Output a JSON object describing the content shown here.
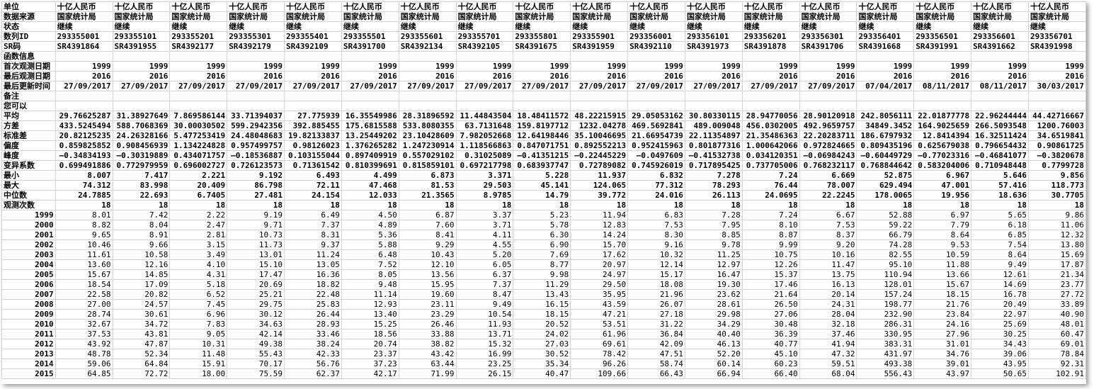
{
  "table": {
    "rows": [
      {
        "label": "单位",
        "cells": [
          "十亿人民币",
          "十亿人民币",
          "十亿人民币",
          "十亿人民币",
          "十亿人民币",
          "十亿人民币",
          "十亿人民币",
          "十亿人民币",
          "十亿人民币",
          "十亿人民币",
          "十亿人民币",
          "十亿人民币",
          "十亿人民币",
          "十亿人民币",
          "十亿人民币",
          "十亿人民币",
          "十亿人民币",
          "十亿人民币"
        ]
      },
      {
        "label": "数据来源",
        "cells": [
          "国家统计局",
          "国家统计局",
          "国家统计局",
          "国家统计局",
          "国家统计局",
          "国家统计局",
          "国家统计局",
          "国家统计局",
          "国家统计局",
          "国家统计局",
          "国家统计局",
          "国家统计局",
          "国家统计局",
          "国家统计局",
          "国家统计局",
          "国家统计局",
          "国家统计局",
          "国家统计局"
        ]
      },
      {
        "label": "状态",
        "cells": [
          "继续",
          "继续",
          "继续",
          "继续",
          "继续",
          "继续",
          "继续",
          "继续",
          "继续",
          "继续",
          "继续",
          "继续",
          "继续",
          "继续",
          "继续",
          "继续",
          "继续",
          "继续"
        ]
      },
      {
        "label": "数列ID",
        "cells": [
          "293355001",
          "293355101",
          "293355201",
          "293355301",
          "293355401",
          "293355501",
          "293355601",
          "293355701",
          "293355801",
          "293355901",
          "293356001",
          "293356101",
          "293356201",
          "293356301",
          "293356401",
          "293356501",
          "293356601",
          "293356701"
        ]
      },
      {
        "label": "SR码",
        "cells": [
          "SR4391864",
          "SR4391955",
          "SR4392177",
          "SR4392179",
          "SR4392109",
          "SR4391700",
          "SR4392134",
          "SR4392105",
          "SR4391675",
          "SR4391959",
          "SR4392110",
          "SR4391973",
          "SR4391878",
          "SR4391706",
          "SR4391668",
          "SR4391991",
          "SR4391662",
          "SR4391998"
        ]
      },
      {
        "label": "函数信息",
        "cells": []
      },
      {
        "label": "首次观测日期",
        "cells": [
          "1999",
          "1999",
          "1999",
          "1999",
          "1999",
          "1999",
          "1999",
          "1999",
          "1999",
          "1999",
          "1999",
          "1999",
          "1999",
          "1999",
          "1999",
          "1999",
          "1999",
          "1999"
        ]
      },
      {
        "label": "最后观测日期",
        "cells": [
          "2016",
          "2016",
          "2016",
          "2016",
          "2016",
          "2016",
          "2016",
          "2016",
          "2016",
          "2016",
          "2016",
          "2016",
          "2016",
          "2016",
          "2016",
          "2016",
          "2016",
          "2016"
        ]
      },
      {
        "label": "最后更新时间",
        "cells": [
          "27/09/2017",
          "27/09/2017",
          "27/09/2017",
          "27/09/2017",
          "27/09/2017",
          "27/09/2017",
          "27/09/2017",
          "27/09/2017",
          "27/09/2017",
          "27/09/2017",
          "27/09/2017",
          "27/09/2017",
          "27/09/2017",
          "27/09/2017",
          "07/04/2017",
          "08/11/2017",
          "08/11/2017",
          "30/03/2017"
        ]
      },
      {
        "label": "备注",
        "cells": []
      },
      {
        "label": "您可以",
        "cells": []
      },
      {
        "label": "平均",
        "cells": [
          "29.76625287",
          "31.38927649",
          "7.869586144",
          "33.71394037",
          "27.775939",
          "16.35549986",
          "28.31896592",
          "11.44843504",
          "18.48411572",
          "48.22215915",
          "29.05053162",
          "30.80330115",
          "28.94770056",
          "28.90120918",
          "242.8056111",
          "22.01877778",
          "22.96244444",
          "44.42716667"
        ]
      },
      {
        "label": "方差",
        "cells": [
          "433.5245494",
          "588.7068369",
          "30.00030502",
          "599.2942356",
          "392.885455",
          "175.6815588",
          "533.8080355",
          "63.7131648",
          "159.8197712",
          "1232.04278",
          "469.5692841",
          "489.009048",
          "456.0302005",
          "492.9659757",
          "34849.3452",
          "164.9025659",
          "266.5093548",
          "1200.76003"
        ]
      },
      {
        "label": "标准差",
        "cells": [
          "20.82125235",
          "24.26328166",
          "5.477253419",
          "24.48048683",
          "19.82133837",
          "13.25449202",
          "23.10428609",
          "7.982052668",
          "12.64198446",
          "35.10046695",
          "21.66954739",
          "22.11354897",
          "21.35486363",
          "22.20283711",
          "186.6797932",
          "12.8414394",
          "16.32511424",
          "34.6519841"
        ]
      },
      {
        "label": "偏度",
        "cells": [
          "0.859825852",
          "0.908456939",
          "1.134224828",
          "0.957499757",
          "0.98126023",
          "1.376265282",
          "1.247230914",
          "1.118566863",
          "0.847071751",
          "0.892552213",
          "0.952415963",
          "0.801877316",
          "1.000642066",
          "0.972824665",
          "0.809435196",
          "0.625679038",
          "0.796654432",
          "0.90861725"
        ]
      },
      {
        "label": "峰度",
        "cells": [
          "–0.34834193",
          "–0.30319889",
          "0.434071757",
          "–0.18536887",
          "0.103155044",
          "0.897409919",
          "0.557029102",
          "0.31025089",
          "–0.41351215",
          "–0.22445229",
          "–0.0497609",
          "–0.41532738",
          "0.034120351",
          "–0.06984243",
          "–0.60449729",
          "–0.77023316",
          "–0.46841077",
          "–0.3820678"
        ]
      },
      {
        "label": "变异系数",
        "cells": [
          "0.699491886",
          "0.772979959",
          "0.696002727",
          "0.726123573",
          "0.71361542",
          "0.810399691",
          "0.815859101",
          "0.697217798",
          "0.683937747",
          "0.72789082",
          "0.745926019",
          "0.717895425",
          "0.737705006",
          "0.768232117",
          "0.768844642",
          "0.583204006",
          "0.710948448",
          "0.7799728"
        ]
      },
      {
        "label": "最小",
        "cells": [
          "8.007",
          "7.417",
          "2.221",
          "9.192",
          "6.493",
          "4.499",
          "6.873",
          "3.371",
          "5.228",
          "11.937",
          "6.832",
          "7.278",
          "7.24",
          "6.669",
          "52.875",
          "6.967",
          "5.646",
          "9.856"
        ]
      },
      {
        "label": "最大",
        "cells": [
          "74.312",
          "83.998",
          "20.409",
          "86.798",
          "72.11",
          "47.468",
          "81.53",
          "29.503",
          "45.141",
          "124.065",
          "77.312",
          "78.293",
          "76.44",
          "78.007",
          "629.494",
          "47.001",
          "57.416",
          "118.773"
        ]
      },
      {
        "label": "中位数",
        "cells": [
          "24.7885",
          "22.693",
          "6.7405",
          "27.481",
          "24.154",
          "12.033",
          "21.3565",
          "8.9785",
          "14.79",
          "39.772",
          "24.016",
          "26.113",
          "24.0695",
          "22.2245",
          "178.0065",
          "19.956",
          "18.636",
          "30.7705"
        ]
      },
      {
        "label": "观测次数",
        "cells": [
          "18",
          "18",
          "18",
          "18",
          "18",
          "18",
          "18",
          "18",
          "18",
          "18",
          "18",
          "18",
          "18",
          "18",
          "18",
          "18",
          "18",
          "18"
        ]
      },
      {
        "label": "1999",
        "cells": [
          "8.01",
          "7.42",
          "2.22",
          "9.19",
          "6.49",
          "4.50",
          "6.87",
          "3.37",
          "5.23",
          "11.94",
          "6.83",
          "7.28",
          "7.24",
          "6.67",
          "52.88",
          "6.97",
          "5.65",
          "9.86"
        ]
      },
      {
        "label": "2000",
        "cells": [
          "8.82",
          "8.04",
          "2.47",
          "9.71",
          "7.37",
          "4.89",
          "7.60",
          "3.71",
          "5.78",
          "12.83",
          "7.53",
          "7.95",
          "8.10",
          "7.53",
          "59.22",
          "7.79",
          "6.18",
          "11.06"
        ]
      },
      {
        "label": "2001",
        "cells": [
          "9.65",
          "8.91",
          "2.81",
          "10.73",
          "8.31",
          "5.36",
          "8.41",
          "4.11",
          "6.30",
          "14.24",
          "8.30",
          "8.85",
          "8.87",
          "8.37",
          "66.79",
          "8.64",
          "6.85",
          "12.32"
        ]
      },
      {
        "label": "2002",
        "cells": [
          "10.46",
          "9.66",
          "3.15",
          "11.73",
          "9.37",
          "5.88",
          "9.29",
          "4.55",
          "6.90",
          "15.70",
          "9.16",
          "9.78",
          "9.99",
          "9.20",
          "74.28",
          "9.53",
          "7.54",
          "13.80"
        ]
      },
      {
        "label": "2003",
        "cells": [
          "11.61",
          "10.58",
          "3.49",
          "13.01",
          "11.24",
          "6.48",
          "10.43",
          "5.20",
          "7.69",
          "17.62",
          "10.32",
          "11.25",
          "10.75",
          "10.16",
          "82.55",
          "10.59",
          "8.64",
          "15.69"
        ]
      },
      {
        "label": "2004",
        "cells": [
          "13.60",
          "12.16",
          "4.10",
          "15.10",
          "13.05",
          "7.52",
          "12.10",
          "6.05",
          "8.77",
          "20.97",
          "12.14",
          "12.97",
          "12.26",
          "11.47",
          "95.10",
          "11.88",
          "9.49",
          "17.87"
        ]
      },
      {
        "label": "2005",
        "cells": [
          "15.67",
          "14.85",
          "4.31",
          "17.47",
          "16.36",
          "8.05",
          "13.56",
          "6.37",
          "9.98",
          "24.97",
          "15.17",
          "16.47",
          "15.37",
          "13.75",
          "110.94",
          "13.66",
          "12.61",
          "21.34"
        ]
      },
      {
        "label": "2006",
        "cells": [
          "18.54",
          "17.09",
          "5.18",
          "20.69",
          "18.82",
          "9.48",
          "15.95",
          "7.37",
          "11.29",
          "29.50",
          "18.08",
          "19.30",
          "17.46",
          "16.13",
          "128.01",
          "15.67",
          "14.69",
          "23.77"
        ]
      },
      {
        "label": "2007",
        "cells": [
          "22.58",
          "20.82",
          "6.52",
          "25.21",
          "22.48",
          "11.14",
          "19.60",
          "8.47",
          "13.43",
          "35.95",
          "21.96",
          "23.62",
          "21.64",
          "20.14",
          "157.24",
          "18.15",
          "16.78",
          "27.72"
        ]
      },
      {
        "label": "2008",
        "cells": [
          "27.00",
          "24.57",
          "7.45",
          "29.75",
          "25.83",
          "12.93",
          "23.11",
          "9.49",
          "16.15",
          "43.59",
          "26.07",
          "28.61",
          "26.50",
          "24.31",
          "198.77",
          "21.76",
          "20.49",
          "33.89"
        ]
      },
      {
        "label": "2009",
        "cells": [
          "28.74",
          "30.61",
          "6.96",
          "30.12",
          "26.44",
          "13.40",
          "23.29",
          "10.54",
          "18.15",
          "47.21",
          "27.18",
          "29.98",
          "27.06",
          "28.04",
          "232.90",
          "23.84",
          "22.97",
          "40.90"
        ]
      },
      {
        "label": "2010",
        "cells": [
          "32.67",
          "34.72",
          "7.83",
          "34.63",
          "28.93",
          "15.25",
          "26.46",
          "11.93",
          "20.52",
          "53.51",
          "31.22",
          "34.29",
          "30.48",
          "32.18",
          "286.31",
          "24.16",
          "25.69",
          "48.01"
        ]
      },
      {
        "label": "2011",
        "cells": [
          "37.53",
          "43.81",
          "9.05",
          "42.14",
          "33.46",
          "18.56",
          "33.88",
          "13.71",
          "24.02",
          "61.96",
          "36.84",
          "40.40",
          "36.39",
          "37.46",
          "330.95",
          "27.96",
          "30.25",
          "60.47"
        ]
      },
      {
        "label": "2012",
        "cells": [
          "43.92",
          "47.87",
          "10.31",
          "49.38",
          "38.24",
          "20.74",
          "38.82",
          "15.32",
          "27.03",
          "69.61",
          "42.09",
          "46.13",
          "40.77",
          "41.94",
          "383.31",
          "31.01",
          "34.43",
          "69.01"
        ]
      },
      {
        "label": "2013",
        "cells": [
          "48.78",
          "52.34",
          "11.48",
          "55.43",
          "42.33",
          "23.37",
          "43.42",
          "16.99",
          "30.52",
          "78.42",
          "47.51",
          "52.20",
          "45.10",
          "47.32",
          "431.97",
          "34.76",
          "39.06",
          "78.84"
        ]
      },
      {
        "label": "2014",
        "cells": [
          "59.06",
          "64.84",
          "15.91",
          "70.17",
          "56.76",
          "37.23",
          "63.44",
          "23.25",
          "35.34",
          "96.26",
          "58.74",
          "60.14",
          "60.23",
          "59.51",
          "493.38",
          "39.01",
          "43.95",
          "92.31"
        ]
      },
      {
        "label": "2015",
        "cells": [
          "64.85",
          "72.72",
          "18.00",
          "75.59",
          "62.37",
          "42.17",
          "71.99",
          "26.15",
          "40.47",
          "109.66",
          "66.43",
          "66.94",
          "66.40",
          "68.04",
          "556.43",
          "43.97",
          "50.65",
          "102.91"
        ]
      }
    ]
  }
}
